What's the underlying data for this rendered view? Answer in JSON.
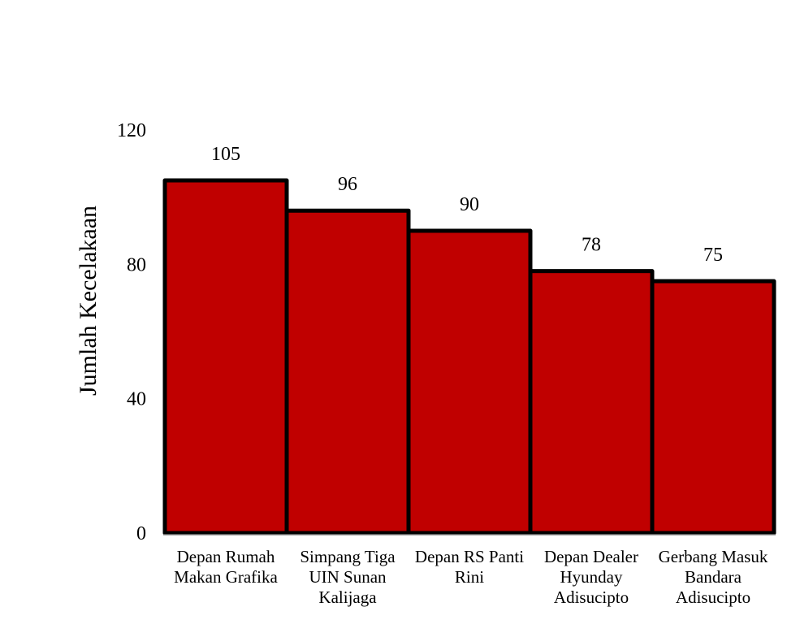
{
  "chart_data": {
    "type": "bar",
    "title": "",
    "xlabel": "",
    "ylabel": "Jumlah Kecelakaan",
    "categories": [
      [
        "Depan Rumah",
        "Makan Grafika"
      ],
      [
        "Simpang Tiga",
        "UIN Sunan",
        "Kalijaga"
      ],
      [
        "Depan RS Panti",
        "Rini"
      ],
      [
        "Depan Dealer",
        "Hyunday",
        "Adisucipto"
      ],
      [
        "Gerbang Masuk",
        "Bandara",
        "Adisucipto"
      ]
    ],
    "values": [
      105,
      96,
      90,
      78,
      75
    ],
    "data_labels": [
      "105",
      "96",
      "90",
      "78",
      "75"
    ],
    "ylim": [
      0,
      120
    ],
    "yticks": [
      "0",
      "40",
      "80",
      "120"
    ],
    "grid": false,
    "legend": "none",
    "colors": {
      "bar_fill": "#c00000",
      "bar_stroke": "#000000"
    }
  }
}
